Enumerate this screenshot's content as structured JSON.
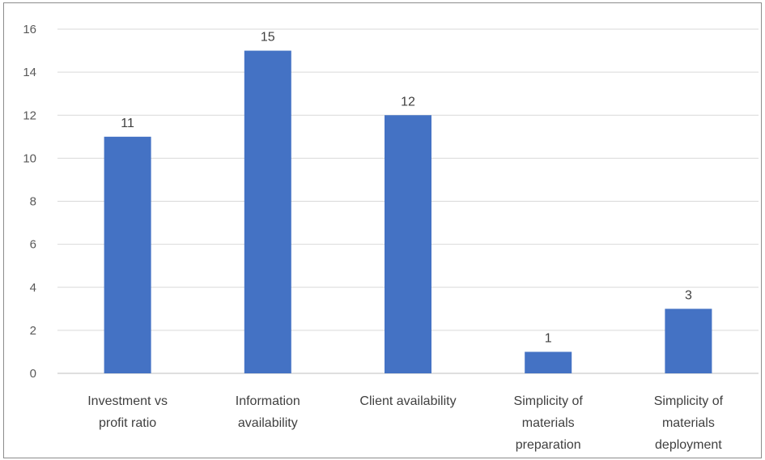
{
  "chart_data": {
    "type": "bar",
    "title": "",
    "xlabel": "",
    "ylabel": "",
    "categories": [
      [
        "Investment vs",
        "profit ratio"
      ],
      [
        "Information",
        "availability"
      ],
      [
        "Client availability"
      ],
      [
        "Simplicity of",
        "materials",
        "preparation"
      ],
      [
        "Simplicity of",
        "materials",
        "deployment"
      ]
    ],
    "values": [
      11,
      15,
      12,
      1,
      3
    ],
    "ylim": [
      0,
      16
    ],
    "yticks": [
      0,
      2,
      4,
      6,
      8,
      10,
      12,
      14,
      16
    ],
    "grid": true,
    "legend": "none",
    "data_labels": true,
    "bar_color": "#4472c4",
    "grid_color": "#d9d9d9"
  }
}
